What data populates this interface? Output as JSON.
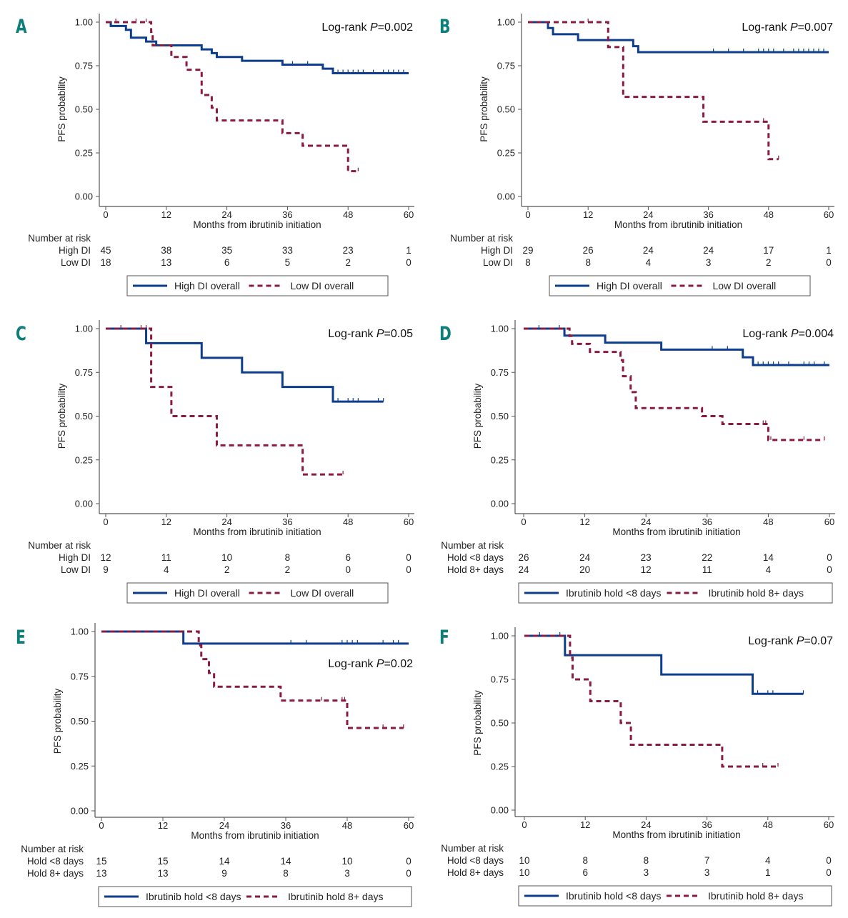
{
  "colors": {
    "high": "#0d3d8c",
    "low": "#8a1b3f",
    "letter": "#0d7f7a",
    "axis": "#555555"
  },
  "chart_data": [
    {
      "type": "line",
      "panel": "A",
      "pvalue_label": "Log-rank ",
      "pvalue_p": "P",
      "pvalue_val": "=0.002",
      "pvalue_position": "top-right",
      "xlabel": "Months from ibrutinib initiation",
      "ylabel": "PFS probability",
      "xlim": [
        0,
        60
      ],
      "ylim": [
        0,
        1
      ],
      "xticks": [
        "0",
        "12",
        "24",
        "36",
        "48",
        "60"
      ],
      "yticks": [
        "0.00",
        "0.25",
        "0.50",
        "0.75",
        "1.00"
      ],
      "risk_title": "Number at risk",
      "risk_rows": [
        {
          "label": "High DI",
          "values": [
            "45",
            "38",
            "35",
            "33",
            "23",
            "1"
          ]
        },
        {
          "label": "Low DI",
          "values": [
            "18",
            "13",
            "6",
            "5",
            "2",
            "0"
          ]
        }
      ],
      "legend": [
        "High DI overall",
        "Low DI overall"
      ],
      "series": [
        {
          "name": "High DI overall",
          "style": "solid",
          "steps": [
            [
              0,
              1.0
            ],
            [
              1,
              0.978
            ],
            [
              4,
              0.956
            ],
            [
              5,
              0.911
            ],
            [
              8,
              0.889
            ],
            [
              10,
              0.867
            ],
            [
              19,
              0.844
            ],
            [
              21,
              0.822
            ],
            [
              22,
              0.8
            ],
            [
              27,
              0.778
            ],
            [
              35,
              0.756
            ],
            [
              43,
              0.733
            ],
            [
              45,
              0.707
            ],
            [
              60,
              0.707
            ]
          ],
          "censor": [
            37,
            40,
            46,
            47,
            48,
            49,
            50,
            51,
            53,
            55,
            56,
            57,
            58,
            59
          ]
        },
        {
          "name": "Low DI overall",
          "style": "dashed",
          "steps": [
            [
              0,
              1.0
            ],
            [
              9,
              0.944
            ],
            [
              9.3,
              0.867
            ],
            [
              13,
              0.8
            ],
            [
              16,
              0.727
            ],
            [
              19,
              0.582
            ],
            [
              21,
              0.509
            ],
            [
              22,
              0.436
            ],
            [
              35,
              0.363
            ],
            [
              39,
              0.291
            ],
            [
              48,
              0.145
            ],
            [
              50,
              0.145
            ]
          ],
          "censor": [
            2,
            6,
            8,
            48,
            50
          ]
        }
      ]
    },
    {
      "type": "line",
      "panel": "B",
      "pvalue_label": "Log-rank ",
      "pvalue_p": "P",
      "pvalue_val": "=0.007",
      "pvalue_position": "top-right",
      "xlabel": "Months from ibrutinib initiation",
      "ylabel": "PFS probability",
      "xlim": [
        0,
        60
      ],
      "ylim": [
        0,
        1
      ],
      "xticks": [
        "0",
        "12",
        "24",
        "36",
        "48",
        "60"
      ],
      "yticks": [
        "0.00",
        "0.25",
        "0.50",
        "0.75",
        "1.00"
      ],
      "risk_title": "Number at risk",
      "risk_rows": [
        {
          "label": "High DI",
          "values": [
            "29",
            "26",
            "24",
            "24",
            "17",
            "1"
          ]
        },
        {
          "label": "Low DI",
          "values": [
            "8",
            "8",
            "4",
            "3",
            "2",
            "0"
          ]
        }
      ],
      "legend": [
        "High DI overall",
        "Low DI overall"
      ],
      "series": [
        {
          "name": "High DI overall",
          "style": "solid",
          "steps": [
            [
              0,
              1.0
            ],
            [
              4,
              0.966
            ],
            [
              5,
              0.931
            ],
            [
              10,
              0.897
            ],
            [
              21,
              0.862
            ],
            [
              22,
              0.828
            ],
            [
              60,
              0.828
            ]
          ],
          "censor": [
            37,
            40,
            43,
            46,
            47,
            48,
            49,
            51,
            53,
            54,
            55,
            56,
            57,
            58,
            59
          ]
        },
        {
          "name": "Low DI overall",
          "style": "dashed",
          "steps": [
            [
              0,
              1.0
            ],
            [
              16,
              0.857
            ],
            [
              19,
              0.571
            ],
            [
              35,
              0.429
            ],
            [
              48,
              0.214
            ],
            [
              50,
              0.214
            ]
          ],
          "censor": [
            12,
            47,
            50
          ]
        }
      ]
    },
    {
      "type": "line",
      "panel": "C",
      "pvalue_label": "Log-rank ",
      "pvalue_p": "P",
      "pvalue_val": "=0.05",
      "pvalue_position": "top-right",
      "xlabel": "Months from ibrutinib initiation",
      "ylabel": "PFS probability",
      "xlim": [
        0,
        60
      ],
      "ylim": [
        0,
        1
      ],
      "xticks": [
        "0",
        "12",
        "24",
        "36",
        "48",
        "60"
      ],
      "yticks": [
        "0.00",
        "0.25",
        "0.50",
        "0.75",
        "1.00"
      ],
      "risk_title": "Number at risk",
      "risk_rows": [
        {
          "label": "High DI",
          "values": [
            "12",
            "11",
            "10",
            "8",
            "6",
            "0"
          ]
        },
        {
          "label": "Low DI",
          "values": [
            "9",
            "4",
            "2",
            "2",
            "0",
            "0"
          ]
        }
      ],
      "legend": [
        "High DI overall",
        "Low DI overall"
      ],
      "series": [
        {
          "name": "High DI overall",
          "style": "solid",
          "steps": [
            [
              0,
              1.0
            ],
            [
              8,
              0.917
            ],
            [
              19,
              0.833
            ],
            [
              27,
              0.75
            ],
            [
              35,
              0.667
            ],
            [
              45,
              0.583
            ],
            [
              55,
              0.583
            ]
          ],
          "censor": [
            46,
            48,
            49,
            50,
            54,
            55
          ]
        },
        {
          "name": "Low DI overall",
          "style": "dashed",
          "steps": [
            [
              0,
              1.0
            ],
            [
              9,
              0.667
            ],
            [
              13,
              0.5
            ],
            [
              22,
              0.333
            ],
            [
              39,
              0.167
            ],
            [
              47,
              0.167
            ]
          ],
          "censor": [
            3,
            7,
            8,
            47
          ]
        }
      ]
    },
    {
      "type": "line",
      "panel": "D",
      "pvalue_label": "Log-rank ",
      "pvalue_p": "P",
      "pvalue_val": "=0.004",
      "pvalue_position": "top-right",
      "xlabel": "Months from ibrutinib initiation",
      "ylabel": "PFS probability",
      "xlim": [
        0,
        60
      ],
      "ylim": [
        0,
        1
      ],
      "xticks": [
        "0",
        "12",
        "24",
        "36",
        "48",
        "60"
      ],
      "yticks": [
        "0.00",
        "0.25",
        "0.50",
        "0.75",
        "1.00"
      ],
      "risk_title": "Number at risk",
      "risk_rows": [
        {
          "label": "Hold <8 days",
          "values": [
            "26",
            "24",
            "23",
            "22",
            "14",
            "0"
          ]
        },
        {
          "label": "Hold 8+ days",
          "values": [
            "24",
            "20",
            "12",
            "11",
            "4",
            "0"
          ]
        }
      ],
      "legend": [
        "Ibrutinib hold <8 days",
        "Ibrutinib hold 8+ days"
      ],
      "series": [
        {
          "name": "Ibrutinib hold <8 days",
          "style": "solid",
          "steps": [
            [
              0,
              1.0
            ],
            [
              8,
              0.96
            ],
            [
              16,
              0.92
            ],
            [
              27,
              0.88
            ],
            [
              43,
              0.836
            ],
            [
              45,
              0.792
            ],
            [
              60,
              0.792
            ]
          ],
          "censor": [
            3,
            7,
            37,
            40,
            46,
            47,
            48,
            49,
            50,
            52,
            55,
            56,
            57,
            59
          ]
        },
        {
          "name": "Ibrutinib hold 8+ days",
          "style": "dashed",
          "steps": [
            [
              0,
              1.0
            ],
            [
              9,
              0.958
            ],
            [
              9.5,
              0.913
            ],
            [
              13,
              0.867
            ],
            [
              19,
              0.82
            ],
            [
              19.5,
              0.728
            ],
            [
              21,
              0.637
            ],
            [
              22,
              0.546
            ],
            [
              35,
              0.5
            ],
            [
              39,
              0.455
            ],
            [
              48,
              0.364
            ],
            [
              59,
              0.364
            ]
          ],
          "censor": [
            47,
            47.5,
            48.5,
            55,
            59
          ]
        }
      ]
    },
    {
      "type": "line",
      "panel": "E",
      "pvalue_label": "Log-rank ",
      "pvalue_p": "P",
      "pvalue_val": "=0.02",
      "pvalue_position": "right",
      "xlabel": "Months from ibrutinib initiation",
      "ylabel": "PFS probability",
      "xlim": [
        0,
        60
      ],
      "ylim": [
        0,
        1
      ],
      "xticks": [
        "0",
        "12",
        "24",
        "36",
        "48",
        "60"
      ],
      "yticks": [
        "0.00",
        "0.25",
        "0.50",
        "0.75",
        "1.00"
      ],
      "risk_title": "Number at risk",
      "risk_rows": [
        {
          "label": "Hold <8 days",
          "values": [
            "15",
            "15",
            "14",
            "14",
            "10",
            "0"
          ]
        },
        {
          "label": "Hold 8+ days",
          "values": [
            "13",
            "13",
            "9",
            "8",
            "3",
            "0"
          ]
        }
      ],
      "legend": [
        "Ibrutinib hold <8 days",
        "Ibrutinib hold 8+ days"
      ],
      "series": [
        {
          "name": "Ibrutinib hold <8 days",
          "style": "solid",
          "steps": [
            [
              0,
              1.0
            ],
            [
              16,
              0.933
            ],
            [
              60,
              0.933
            ]
          ],
          "censor": [
            37,
            40,
            47,
            48,
            49,
            50,
            55,
            57,
            58
          ]
        },
        {
          "name": "Ibrutinib hold 8+ days",
          "style": "dashed",
          "steps": [
            [
              0,
              1.0
            ],
            [
              19,
              0.923
            ],
            [
              19.5,
              0.846
            ],
            [
              21,
              0.769
            ],
            [
              22,
              0.692
            ],
            [
              35,
              0.615
            ],
            [
              48,
              0.462
            ],
            [
              59,
              0.462
            ]
          ],
          "censor": [
            43,
            47,
            47.5,
            55,
            59
          ]
        }
      ]
    },
    {
      "type": "line",
      "panel": "F",
      "pvalue_label": "Log-rank ",
      "pvalue_p": "P",
      "pvalue_val": "=0.07",
      "pvalue_position": "top-right",
      "xlabel": "Months from ibrutinib initiation",
      "ylabel": "PFS probability",
      "xlim": [
        0,
        60
      ],
      "ylim": [
        0,
        1
      ],
      "xticks": [
        "0",
        "12",
        "24",
        "36",
        "48",
        "60"
      ],
      "yticks": [
        "0.00",
        "0.25",
        "0.50",
        "0.75",
        "1.00"
      ],
      "risk_title": "Number at risk",
      "risk_rows": [
        {
          "label": "Hold <8 days",
          "values": [
            "10",
            "8",
            "8",
            "7",
            "4",
            "0"
          ]
        },
        {
          "label": "Hold 8+ days",
          "values": [
            "10",
            "6",
            "3",
            "3",
            "1",
            "0"
          ]
        }
      ],
      "legend": [
        "Ibrutinib hold <8 days",
        "Ibrutinib hold 8+ days"
      ],
      "series": [
        {
          "name": "Ibrutinib hold <8 days",
          "style": "solid",
          "steps": [
            [
              0,
              1.0
            ],
            [
              8,
              0.889
            ],
            [
              27,
              0.778
            ],
            [
              45,
              0.667
            ],
            [
              55,
              0.667
            ]
          ],
          "censor": [
            3,
            7,
            46,
            48,
            49,
            55
          ]
        },
        {
          "name": "Ibrutinib hold 8+ days",
          "style": "dashed",
          "steps": [
            [
              0,
              1.0
            ],
            [
              9,
              0.875
            ],
            [
              9.5,
              0.75
            ],
            [
              13,
              0.625
            ],
            [
              19,
              0.5
            ],
            [
              21,
              0.375
            ],
            [
              39,
              0.25
            ],
            [
              50,
              0.25
            ]
          ],
          "censor": [
            47,
            50
          ]
        }
      ]
    }
  ]
}
